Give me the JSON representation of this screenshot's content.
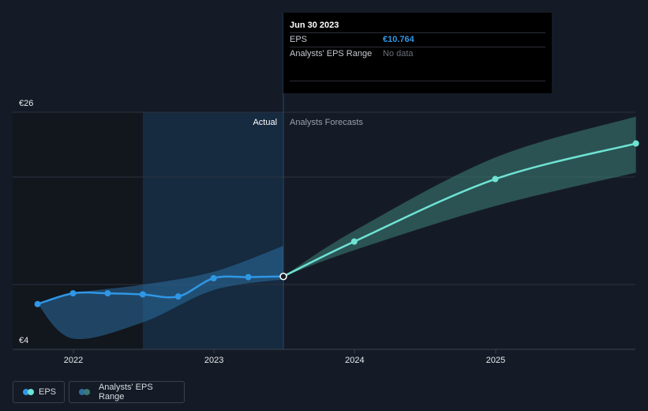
{
  "chart_data": {
    "type": "line",
    "y_tick_labels": [
      "€26",
      "€4"
    ],
    "ylim": [
      4,
      26
    ],
    "x_tick_labels": [
      "2022",
      "2023",
      "2024",
      "2025"
    ],
    "region_labels": {
      "actual": "Actual",
      "forecast": "Analysts Forecasts"
    },
    "series": [
      {
        "name": "EPS",
        "color": "#2f97e6",
        "forecast_color": "#6fe3d3",
        "actual_points": [
          {
            "x": "2021-09-30",
            "y": 8.2
          },
          {
            "x": "2021-12-31",
            "y": 9.2
          },
          {
            "x": "2022-03-31",
            "y": 9.2
          },
          {
            "x": "2022-06-30",
            "y": 9.1
          },
          {
            "x": "2022-09-30",
            "y": 8.9
          },
          {
            "x": "2022-12-31",
            "y": 10.6
          },
          {
            "x": "2023-03-31",
            "y": 10.7
          },
          {
            "x": "2023-06-30",
            "y": 10.764
          }
        ],
        "forecast_points": [
          {
            "x": "2023-06-30",
            "y": 10.764
          },
          {
            "x": "2023-12-31",
            "y": 14.0
          },
          {
            "x": "2024-12-31",
            "y": 19.8
          },
          {
            "x": "2025-12-31",
            "y": 23.1
          }
        ]
      },
      {
        "name": "Analysts' EPS Range",
        "color": "#2b6e9e",
        "forecast_color": "#3a7a73",
        "actual_band": [
          {
            "x": "2021-09-30",
            "low": 8.2,
            "high": 8.2
          },
          {
            "x": "2021-12-31",
            "low": 5.0,
            "high": 9.2
          },
          {
            "x": "2022-06-30",
            "low": 6.5,
            "high": 10.0
          },
          {
            "x": "2022-12-31",
            "low": 9.5,
            "high": 11.2
          },
          {
            "x": "2023-06-30",
            "low": 10.5,
            "high": 13.6
          }
        ],
        "forecast_band": [
          {
            "x": "2023-06-30",
            "low": 10.764,
            "high": 10.764
          },
          {
            "x": "2023-12-31",
            "low": 13.2,
            "high": 15.0
          },
          {
            "x": "2024-12-31",
            "low": 17.3,
            "high": 21.8
          },
          {
            "x": "2025-12-31",
            "low": 20.4,
            "high": 25.6
          }
        ]
      }
    ],
    "grid": true
  },
  "tooltip": {
    "date": "Jun 30 2023",
    "eps_label": "EPS",
    "eps_value": "€10.764",
    "range_label": "Analysts' EPS Range",
    "range_value": "No data"
  },
  "legend": {
    "eps_label": "EPS",
    "range_label": "Analysts' EPS Range"
  },
  "colors": {
    "background": "#151b26",
    "past_shade": "#12161d",
    "actual_shade": "#162a40",
    "eps_line": "#2f97e6",
    "forecast_line": "#6fe3d3"
  }
}
